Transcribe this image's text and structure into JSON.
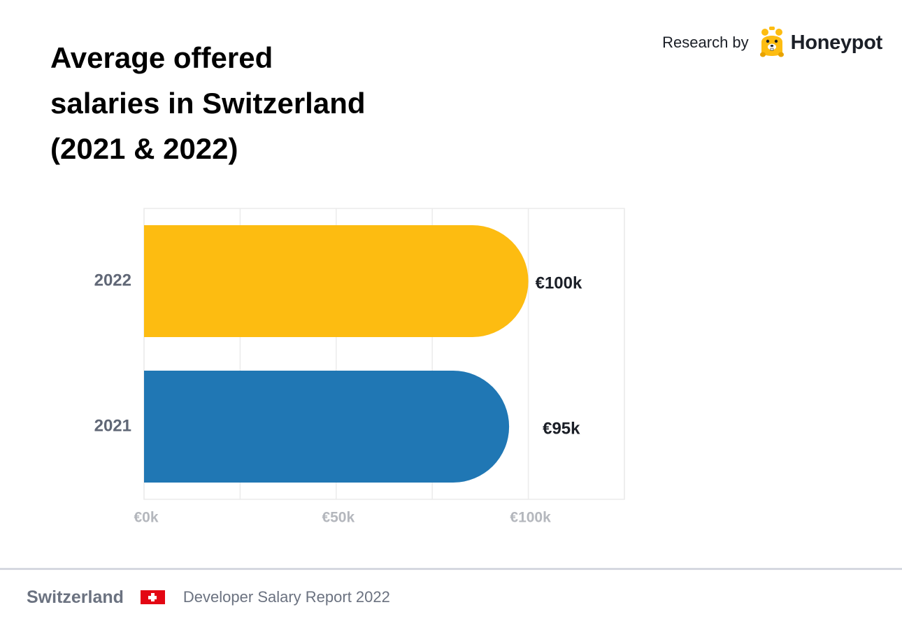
{
  "header": {
    "title_lines": [
      "Average offered",
      "salaries in Switzerland",
      "(2021 & 2022)"
    ],
    "brand_prefix": "Research by",
    "brand_name": "Honeypot",
    "brand_logo_icon": "honeypot-bear-icon"
  },
  "chart_data": {
    "type": "bar",
    "orientation": "horizontal",
    "categories": [
      "2022",
      "2021"
    ],
    "values": [
      100,
      95
    ],
    "value_labels": [
      "€100k",
      "€95k"
    ],
    "bar_colors": [
      "#FDBC11",
      "#2077B4"
    ],
    "x_ticks": [
      0,
      50,
      100
    ],
    "x_tick_labels": [
      "€0k",
      "€50k",
      "€100k"
    ],
    "xlim": [
      0,
      125
    ],
    "gridlines": [
      0,
      25,
      50,
      75,
      100,
      125
    ],
    "grid": true,
    "title": "Average offered salaries in Switzerland (2021 & 2022)",
    "xlabel": "",
    "ylabel": ""
  },
  "footer": {
    "country": "Switzerland",
    "flag_icon": "swiss-flag-icon",
    "report": "Developer Salary Report 2022"
  },
  "colors": {
    "accent_yellow": "#FDBC11",
    "accent_blue": "#2077B4",
    "flag_red": "#E30613"
  }
}
